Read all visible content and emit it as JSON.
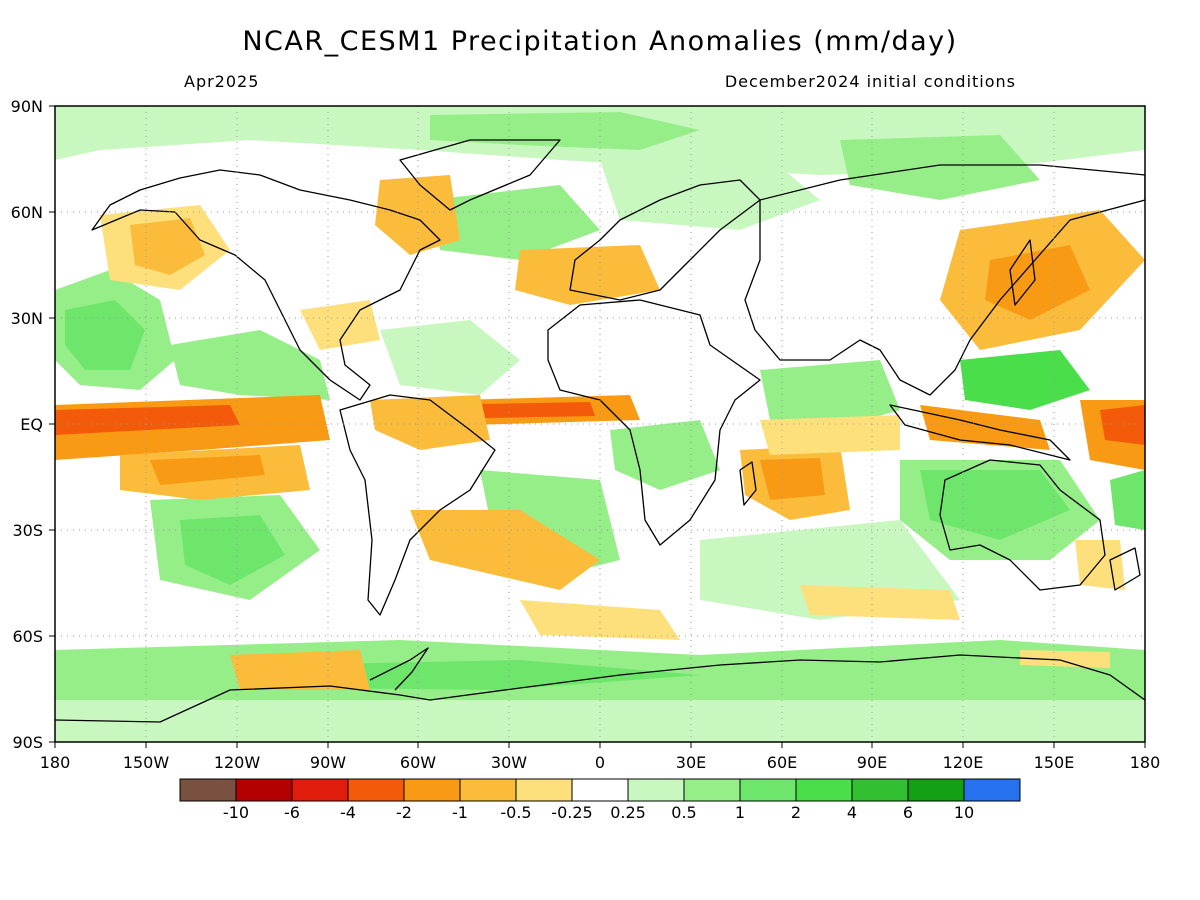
{
  "title": "NCAR_CESM1 Precipitation Anomalies (mm/day)",
  "valid_month": "Apr2025",
  "init_conditions": "December2024 initial conditions",
  "lat_labels": [
    "90N",
    "60N",
    "30N",
    "EQ",
    "30S",
    "60S",
    "90S"
  ],
  "lon_labels": [
    "180",
    "150W",
    "120W",
    "90W",
    "60W",
    "30W",
    "0",
    "30E",
    "60E",
    "90E",
    "120E",
    "150E",
    "180"
  ],
  "colorbar": {
    "colors": [
      "#7a5040",
      "#b40000",
      "#e01c0c",
      "#f35a0a",
      "#f89a14",
      "#fbbc3c",
      "#fde07c",
      "#ffffff",
      "#c8f8c0",
      "#96ee88",
      "#6ee66c",
      "#4ade4a",
      "#32c032",
      "#14a014",
      "#2672ee"
    ],
    "labels": [
      "-10",
      "-6",
      "-4",
      "-2",
      "-1",
      "-0.5",
      "-0.25",
      "0.25",
      "0.5",
      "1",
      "2",
      "4",
      "6",
      "10"
    ]
  }
}
